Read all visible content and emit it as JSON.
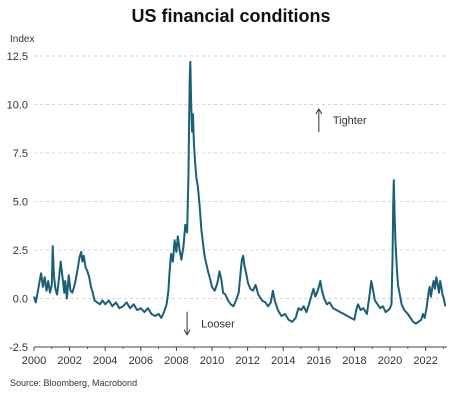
{
  "chart_data": {
    "type": "line",
    "title": "US financial conditions",
    "ylabel": "Index",
    "xlabel": "",
    "source": "Source: Bloomberg, Macrobond",
    "ylim": [
      -2.5,
      12.5
    ],
    "xlim": [
      2000,
      2023.2
    ],
    "y_ticks": [
      {
        "value": -2.5,
        "label": "-2.5"
      },
      {
        "value": 0,
        "label": "0.0"
      },
      {
        "value": 2.5,
        "label": "2.5"
      },
      {
        "value": 5,
        "label": "5.0"
      },
      {
        "value": 7.5,
        "label": "7.5"
      },
      {
        "value": 10,
        "label": "10.0"
      },
      {
        "value": 12.5,
        "label": "12.5"
      }
    ],
    "x_ticks": [
      {
        "value": 2000,
        "label": "2000"
      },
      {
        "value": 2002,
        "label": "2002"
      },
      {
        "value": 2004,
        "label": "2004"
      },
      {
        "value": 2006,
        "label": "2006"
      },
      {
        "value": 2008,
        "label": "2008"
      },
      {
        "value": 2010,
        "label": "2010"
      },
      {
        "value": 2012,
        "label": "2012"
      },
      {
        "value": 2014,
        "label": "2014"
      },
      {
        "value": 2016,
        "label": "2016"
      },
      {
        "value": 2018,
        "label": "2018"
      },
      {
        "value": 2020,
        "label": "2020"
      },
      {
        "value": 2022,
        "label": "2022"
      }
    ],
    "grid": true,
    "annotations": [
      {
        "text": "Tighter",
        "x": 2016.0,
        "y": 9.2,
        "arrow": "up"
      },
      {
        "text": "Looser",
        "x": 2008.6,
        "y": -1.3,
        "arrow": "down"
      }
    ],
    "series": [
      {
        "color": "#1a5f78",
        "points": [
          [
            2000.0,
            0.1
          ],
          [
            2000.1,
            -0.2
          ],
          [
            2000.2,
            0.3
          ],
          [
            2000.3,
            0.8
          ],
          [
            2000.4,
            1.3
          ],
          [
            2000.5,
            0.6
          ],
          [
            2000.6,
            1.1
          ],
          [
            2000.7,
            0.4
          ],
          [
            2000.8,
            0.9
          ],
          [
            2000.9,
            0.3
          ],
          [
            2001.0,
            0.7
          ],
          [
            2001.05,
            2.7
          ],
          [
            2001.12,
            1.2
          ],
          [
            2001.2,
            0.5
          ],
          [
            2001.3,
            0.2
          ],
          [
            2001.4,
            1.0
          ],
          [
            2001.5,
            1.9
          ],
          [
            2001.6,
            1.1
          ],
          [
            2001.7,
            0.3
          ],
          [
            2001.75,
            0.9
          ],
          [
            2001.85,
            0.0
          ],
          [
            2001.95,
            1.2
          ],
          [
            2002.05,
            0.4
          ],
          [
            2002.15,
            0.3
          ],
          [
            2002.25,
            0.6
          ],
          [
            2002.35,
            1.0
          ],
          [
            2002.45,
            1.5
          ],
          [
            2002.55,
            2.1
          ],
          [
            2002.65,
            2.4
          ],
          [
            2002.72,
            1.9
          ],
          [
            2002.8,
            2.2
          ],
          [
            2002.9,
            1.6
          ],
          [
            2003.0,
            1.4
          ],
          [
            2003.1,
            1.1
          ],
          [
            2003.2,
            0.6
          ],
          [
            2003.3,
            0.3
          ],
          [
            2003.4,
            -0.1
          ],
          [
            2003.55,
            -0.2
          ],
          [
            2003.7,
            -0.3
          ],
          [
            2003.85,
            -0.1
          ],
          [
            2004.0,
            -0.3
          ],
          [
            2004.2,
            -0.1
          ],
          [
            2004.4,
            -0.4
          ],
          [
            2004.6,
            -0.2
          ],
          [
            2004.8,
            -0.5
          ],
          [
            2005.0,
            -0.4
          ],
          [
            2005.2,
            -0.2
          ],
          [
            2005.4,
            -0.5
          ],
          [
            2005.6,
            -0.3
          ],
          [
            2005.8,
            -0.6
          ],
          [
            2006.0,
            -0.5
          ],
          [
            2006.2,
            -0.7
          ],
          [
            2006.4,
            -0.5
          ],
          [
            2006.6,
            -0.8
          ],
          [
            2006.8,
            -0.9
          ],
          [
            2007.0,
            -0.8
          ],
          [
            2007.15,
            -1.0
          ],
          [
            2007.3,
            -0.7
          ],
          [
            2007.45,
            -0.3
          ],
          [
            2007.55,
            0.4
          ],
          [
            2007.62,
            1.4
          ],
          [
            2007.7,
            2.3
          ],
          [
            2007.8,
            1.9
          ],
          [
            2007.9,
            3.0
          ],
          [
            2008.0,
            2.4
          ],
          [
            2008.08,
            3.2
          ],
          [
            2008.18,
            2.5
          ],
          [
            2008.28,
            2.0
          ],
          [
            2008.4,
            2.7
          ],
          [
            2008.5,
            3.8
          ],
          [
            2008.6,
            3.4
          ],
          [
            2008.68,
            6.5
          ],
          [
            2008.72,
            9.5
          ],
          [
            2008.75,
            11.5
          ],
          [
            2008.78,
            12.2
          ],
          [
            2008.83,
            10.0
          ],
          [
            2008.88,
            8.6
          ],
          [
            2008.93,
            9.5
          ],
          [
            2008.98,
            8.0
          ],
          [
            2009.05,
            7.0
          ],
          [
            2009.12,
            6.2
          ],
          [
            2009.2,
            5.8
          ],
          [
            2009.3,
            4.8
          ],
          [
            2009.4,
            3.6
          ],
          [
            2009.5,
            2.8
          ],
          [
            2009.6,
            2.1
          ],
          [
            2009.7,
            1.7
          ],
          [
            2009.8,
            1.3
          ],
          [
            2009.9,
            1.0
          ],
          [
            2010.0,
            0.6
          ],
          [
            2010.15,
            0.4
          ],
          [
            2010.3,
            0.8
          ],
          [
            2010.42,
            1.4
          ],
          [
            2010.52,
            1.0
          ],
          [
            2010.62,
            0.3
          ],
          [
            2010.75,
            0.2
          ],
          [
            2010.9,
            -0.1
          ],
          [
            2011.05,
            -0.3
          ],
          [
            2011.2,
            -0.4
          ],
          [
            2011.35,
            -0.1
          ],
          [
            2011.5,
            0.3
          ],
          [
            2011.6,
            1.3
          ],
          [
            2011.68,
            2.0
          ],
          [
            2011.75,
            2.2
          ],
          [
            2011.82,
            1.7
          ],
          [
            2011.92,
            1.3
          ],
          [
            2012.02,
            0.8
          ],
          [
            2012.15,
            0.5
          ],
          [
            2012.3,
            0.4
          ],
          [
            2012.45,
            0.7
          ],
          [
            2012.6,
            0.2
          ],
          [
            2012.8,
            -0.1
          ],
          [
            2013.0,
            -0.2
          ],
          [
            2013.15,
            -0.4
          ],
          [
            2013.3,
            -0.2
          ],
          [
            2013.42,
            0.4
          ],
          [
            2013.52,
            -0.1
          ],
          [
            2013.7,
            -0.6
          ],
          [
            2013.9,
            -0.9
          ],
          [
            2014.1,
            -0.8
          ],
          [
            2014.3,
            -1.1
          ],
          [
            2014.5,
            -1.2
          ],
          [
            2014.7,
            -1.0
          ],
          [
            2014.85,
            -0.5
          ],
          [
            2015.0,
            -0.6
          ],
          [
            2015.15,
            -0.4
          ],
          [
            2015.3,
            -0.7
          ],
          [
            2015.45,
            -0.3
          ],
          [
            2015.6,
            0.2
          ],
          [
            2015.7,
            0.5
          ],
          [
            2015.8,
            0.1
          ],
          [
            2015.9,
            0.3
          ],
          [
            2016.0,
            0.6
          ],
          [
            2016.08,
            0.9
          ],
          [
            2016.18,
            0.4
          ],
          [
            2016.3,
            0.0
          ],
          [
            2016.45,
            -0.3
          ],
          [
            2016.6,
            -0.2
          ],
          [
            2016.8,
            -0.5
          ],
          [
            2017.0,
            -0.6
          ],
          [
            2017.2,
            -0.7
          ],
          [
            2017.4,
            -0.8
          ],
          [
            2017.6,
            -0.9
          ],
          [
            2017.8,
            -1.0
          ],
          [
            2018.0,
            -1.1
          ],
          [
            2018.1,
            -0.6
          ],
          [
            2018.2,
            -0.3
          ],
          [
            2018.35,
            -0.6
          ],
          [
            2018.5,
            -0.5
          ],
          [
            2018.7,
            -0.8
          ],
          [
            2018.85,
            0.2
          ],
          [
            2018.95,
            0.9
          ],
          [
            2019.05,
            0.4
          ],
          [
            2019.15,
            -0.1
          ],
          [
            2019.3,
            -0.3
          ],
          [
            2019.45,
            -0.5
          ],
          [
            2019.6,
            -0.4
          ],
          [
            2019.75,
            -0.7
          ],
          [
            2019.9,
            -0.6
          ],
          [
            2020.0,
            -0.5
          ],
          [
            2020.08,
            -0.3
          ],
          [
            2020.14,
            2.0
          ],
          [
            2020.18,
            4.8
          ],
          [
            2020.21,
            6.1
          ],
          [
            2020.25,
            4.5
          ],
          [
            2020.3,
            3.0
          ],
          [
            2020.38,
            1.6
          ],
          [
            2020.45,
            0.7
          ],
          [
            2020.55,
            0.2
          ],
          [
            2020.65,
            -0.3
          ],
          [
            2020.8,
            -0.6
          ],
          [
            2021.0,
            -0.8
          ],
          [
            2021.15,
            -1.0
          ],
          [
            2021.3,
            -1.2
          ],
          [
            2021.45,
            -1.3
          ],
          [
            2021.6,
            -1.2
          ],
          [
            2021.75,
            -1.1
          ],
          [
            2021.85,
            -0.8
          ],
          [
            2021.95,
            -1.0
          ],
          [
            2022.05,
            -0.5
          ],
          [
            2022.15,
            0.2
          ],
          [
            2022.22,
            0.6
          ],
          [
            2022.3,
            0.1
          ],
          [
            2022.38,
            0.6
          ],
          [
            2022.45,
            0.9
          ],
          [
            2022.52,
            0.5
          ],
          [
            2022.6,
            1.1
          ],
          [
            2022.68,
            0.7
          ],
          [
            2022.75,
            0.3
          ],
          [
            2022.82,
            0.9
          ],
          [
            2022.88,
            0.6
          ],
          [
            2022.95,
            0.2
          ],
          [
            2023.02,
            0.0
          ],
          [
            2023.1,
            -0.4
          ]
        ]
      }
    ]
  }
}
